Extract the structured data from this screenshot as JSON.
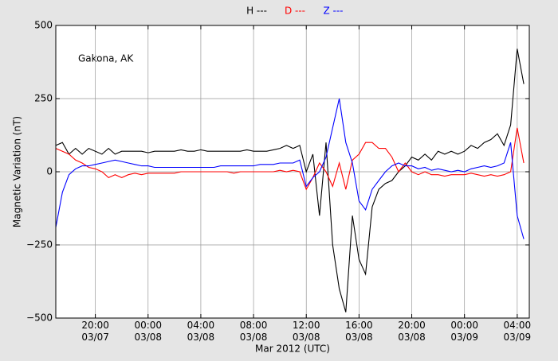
{
  "chart_data": {
    "type": "line",
    "ylabel": "Magnetic Variation (nT)",
    "xlabel": "Mar 2012 (UTC)",
    "annotation": "Gakona, AK",
    "x": [
      "2012-03-07 17:00",
      "2012-03-07 17:30",
      "2012-03-07 18:00",
      "2012-03-07 18:30",
      "2012-03-07 19:00",
      "2012-03-07 19:30",
      "2012-03-07 20:00",
      "2012-03-07 20:30",
      "2012-03-07 21:00",
      "2012-03-07 21:30",
      "2012-03-07 22:00",
      "2012-03-07 22:30",
      "2012-03-07 23:00",
      "2012-03-07 23:30",
      "2012-03-08 00:00",
      "2012-03-08 00:30",
      "2012-03-08 01:00",
      "2012-03-08 01:30",
      "2012-03-08 02:00",
      "2012-03-08 02:30",
      "2012-03-08 03:00",
      "2012-03-08 03:30",
      "2012-03-08 04:00",
      "2012-03-08 04:30",
      "2012-03-08 05:00",
      "2012-03-08 05:30",
      "2012-03-08 06:00",
      "2012-03-08 06:30",
      "2012-03-08 07:00",
      "2012-03-08 07:30",
      "2012-03-08 08:00",
      "2012-03-08 08:30",
      "2012-03-08 09:00",
      "2012-03-08 09:30",
      "2012-03-08 10:00",
      "2012-03-08 10:30",
      "2012-03-08 11:00",
      "2012-03-08 11:30",
      "2012-03-08 12:00",
      "2012-03-08 12:30",
      "2012-03-08 13:00",
      "2012-03-08 13:30",
      "2012-03-08 14:00",
      "2012-03-08 14:30",
      "2012-03-08 15:00",
      "2012-03-08 15:30",
      "2012-03-08 16:00",
      "2012-03-08 16:30",
      "2012-03-08 17:00",
      "2012-03-08 17:30",
      "2012-03-08 18:00",
      "2012-03-08 18:30",
      "2012-03-08 19:00",
      "2012-03-08 19:30",
      "2012-03-08 20:00",
      "2012-03-08 20:30",
      "2012-03-08 21:00",
      "2012-03-08 21:30",
      "2012-03-08 22:00",
      "2012-03-08 22:30",
      "2012-03-08 23:00",
      "2012-03-08 23:30",
      "2012-03-09 00:00",
      "2012-03-09 00:30",
      "2012-03-09 01:00",
      "2012-03-09 01:30",
      "2012-03-09 02:00",
      "2012-03-09 02:30",
      "2012-03-09 03:00",
      "2012-03-09 03:30",
      "2012-03-09 04:00",
      "2012-03-09 04:30"
    ],
    "series": [
      {
        "name": "H ---",
        "color": "#000000",
        "values": [
          90,
          100,
          60,
          80,
          60,
          80,
          70,
          60,
          80,
          60,
          70,
          70,
          70,
          70,
          65,
          70,
          70,
          70,
          70,
          75,
          70,
          70,
          75,
          70,
          70,
          70,
          70,
          70,
          70,
          75,
          70,
          70,
          70,
          75,
          80,
          90,
          80,
          90,
          0,
          60,
          -150,
          100,
          -250,
          -400,
          -480,
          -150,
          -300,
          -350,
          -120,
          -60,
          -40,
          -30,
          0,
          20,
          50,
          40,
          60,
          40,
          70,
          60,
          70,
          60,
          70,
          90,
          80,
          100,
          110,
          130,
          90,
          160,
          420,
          300
        ]
      },
      {
        "name": "D ---",
        "color": "#ff0000",
        "values": [
          80,
          70,
          60,
          40,
          30,
          15,
          10,
          0,
          -20,
          -10,
          -20,
          -10,
          -5,
          -10,
          -5,
          -5,
          -5,
          -5,
          -5,
          0,
          0,
          0,
          0,
          0,
          0,
          0,
          0,
          -5,
          0,
          0,
          0,
          0,
          0,
          0,
          5,
          0,
          5,
          0,
          -60,
          -20,
          30,
          0,
          -50,
          30,
          -60,
          40,
          60,
          100,
          100,
          80,
          80,
          50,
          0,
          30,
          0,
          -10,
          0,
          -10,
          -10,
          -15,
          -10,
          -10,
          -10,
          -5,
          -10,
          -15,
          -10,
          -15,
          -10,
          0,
          150,
          30
        ]
      },
      {
        "name": "Z ---",
        "color": "#0000ff",
        "values": [
          -190,
          -70,
          -10,
          10,
          20,
          20,
          25,
          30,
          35,
          40,
          35,
          30,
          25,
          20,
          20,
          15,
          15,
          15,
          15,
          15,
          15,
          15,
          15,
          15,
          15,
          20,
          20,
          20,
          20,
          20,
          20,
          25,
          25,
          25,
          30,
          30,
          30,
          40,
          -50,
          -20,
          0,
          50,
          150,
          250,
          100,
          30,
          -100,
          -130,
          -60,
          -30,
          0,
          20,
          30,
          20,
          20,
          10,
          15,
          5,
          10,
          5,
          0,
          5,
          0,
          10,
          15,
          20,
          15,
          20,
          30,
          100,
          -150,
          -230
        ]
      }
    ],
    "xlim": [
      "2012-03-07 17:00",
      "2012-03-09 04:55"
    ],
    "xticks": [
      {
        "value": "2012-03-07 20:00",
        "label": "20:00\n03/07"
      },
      {
        "value": "2012-03-08 00:00",
        "label": "00:00\n03/08"
      },
      {
        "value": "2012-03-08 04:00",
        "label": "04:00\n03/08"
      },
      {
        "value": "2012-03-08 08:00",
        "label": "08:00\n03/08"
      },
      {
        "value": "2012-03-08 12:00",
        "label": "12:00\n03/08"
      },
      {
        "value": "2012-03-08 16:00",
        "label": "16:00\n03/08"
      },
      {
        "value": "2012-03-08 20:00",
        "label": "20:00\n03/08"
      },
      {
        "value": "2012-03-09 00:00",
        "label": "00:00\n03/09"
      },
      {
        "value": "2012-03-09 04:00",
        "label": "04:00\n03/09"
      }
    ],
    "ylim": [
      -500,
      500
    ],
    "yticks": [
      {
        "value": -500,
        "label": "−500"
      },
      {
        "value": -250,
        "label": "−250"
      },
      0,
      250,
      500
    ],
    "grid": true,
    "legend": "top"
  }
}
